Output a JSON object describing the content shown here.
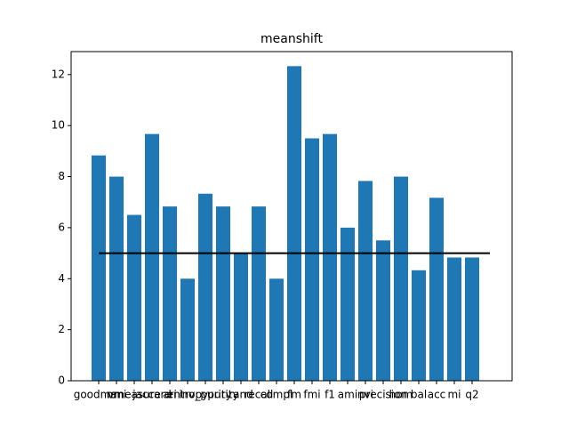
{
  "chart_data": {
    "type": "bar",
    "title": "meanshift",
    "categories": [
      "goodman",
      "nmi",
      "vmeasure",
      "jaccard",
      "ari",
      "entropy",
      "inv_purity",
      "purity",
      "rand",
      "recall",
      "compl",
      "fm",
      "fmi",
      "f1",
      "ami",
      "nvi",
      "precision",
      "hom",
      "bal",
      "acc",
      "mi",
      "q2"
    ],
    "values": [
      8.83,
      8.0,
      6.5,
      9.67,
      6.83,
      4.0,
      7.33,
      6.83,
      5.0,
      6.83,
      4.0,
      12.33,
      9.5,
      9.67,
      6.0,
      7.83,
      5.5,
      8.0,
      4.33,
      7.17,
      4.83,
      4.83
    ],
    "color": "#1f77b4",
    "hline": {
      "value": 5,
      "xrange": [
        0,
        22
      ],
      "color": "#000000"
    },
    "xlim": [
      -1.55,
      23.25
    ],
    "ylim": [
      0,
      12.9
    ],
    "yticks": [
      0,
      2,
      4,
      6,
      8,
      10,
      12
    ],
    "grid": false
  }
}
